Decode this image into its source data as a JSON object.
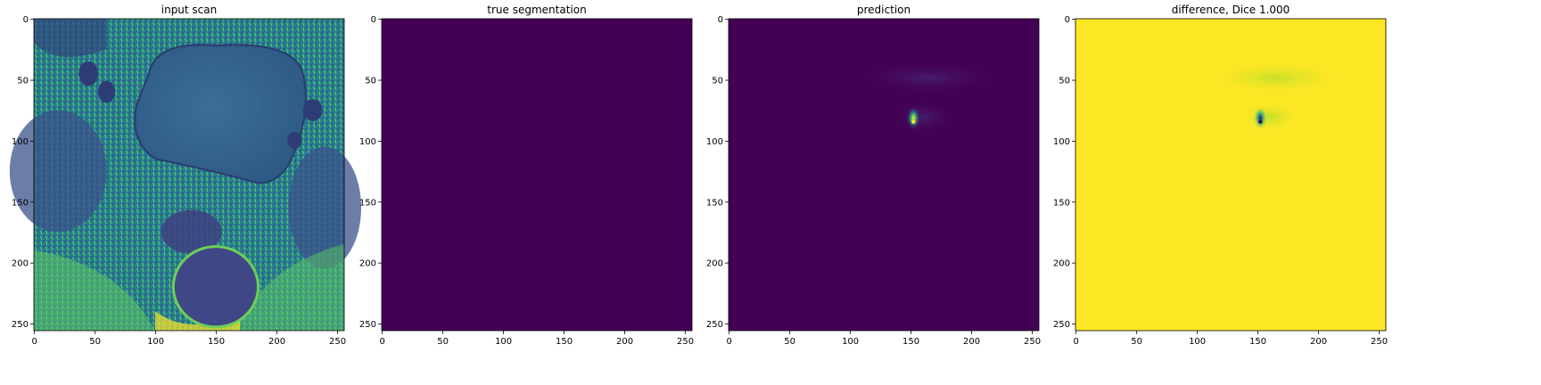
{
  "figure": {
    "panels": [
      {
        "title": "input scan"
      },
      {
        "title": "true segmentation"
      },
      {
        "title": "prediction"
      },
      {
        "title": "difference, Dice 1.000"
      }
    ]
  },
  "colors": {
    "viridis_dark": "#440154",
    "viridis_blue": "#3b528b",
    "viridis_teal": "#21918c",
    "viridis_green": "#5ec962",
    "viridis_yellow": "#fde725"
  },
  "chart_data": [
    {
      "type": "heatmap",
      "title": "input scan",
      "colormap": "viridis",
      "xlim": [
        0,
        255
      ],
      "ylim": [
        255,
        0
      ],
      "xticks": [
        0,
        50,
        100,
        150,
        200,
        250
      ],
      "yticks": [
        0,
        50,
        100,
        150,
        200,
        250
      ],
      "content": "MRI pelvic scan image"
    },
    {
      "type": "heatmap",
      "title": "true segmentation",
      "colormap": "viridis",
      "xlim": [
        0,
        255
      ],
      "ylim": [
        255,
        0
      ],
      "xticks": [
        0,
        50,
        100,
        150,
        200,
        250
      ],
      "yticks": [
        0,
        50,
        100,
        150,
        200,
        250
      ],
      "values_uniform": 0
    },
    {
      "type": "heatmap",
      "title": "prediction",
      "colormap": "viridis",
      "xlim": [
        0,
        255
      ],
      "ylim": [
        255,
        0
      ],
      "xticks": [
        0,
        50,
        100,
        150,
        200,
        250
      ],
      "yticks": [
        0,
        50,
        100,
        150,
        200,
        250
      ],
      "hotspot": {
        "x": 152,
        "y": 84
      }
    },
    {
      "type": "heatmap",
      "title": "difference, Dice 1.000",
      "colormap": "viridis",
      "xlim": [
        0,
        255
      ],
      "ylim": [
        255,
        0
      ],
      "xticks": [
        0,
        50,
        100,
        150,
        200,
        250
      ],
      "yticks": [
        0,
        50,
        100,
        150,
        200,
        250
      ],
      "hotspot": {
        "x": 152,
        "y": 84
      }
    }
  ]
}
